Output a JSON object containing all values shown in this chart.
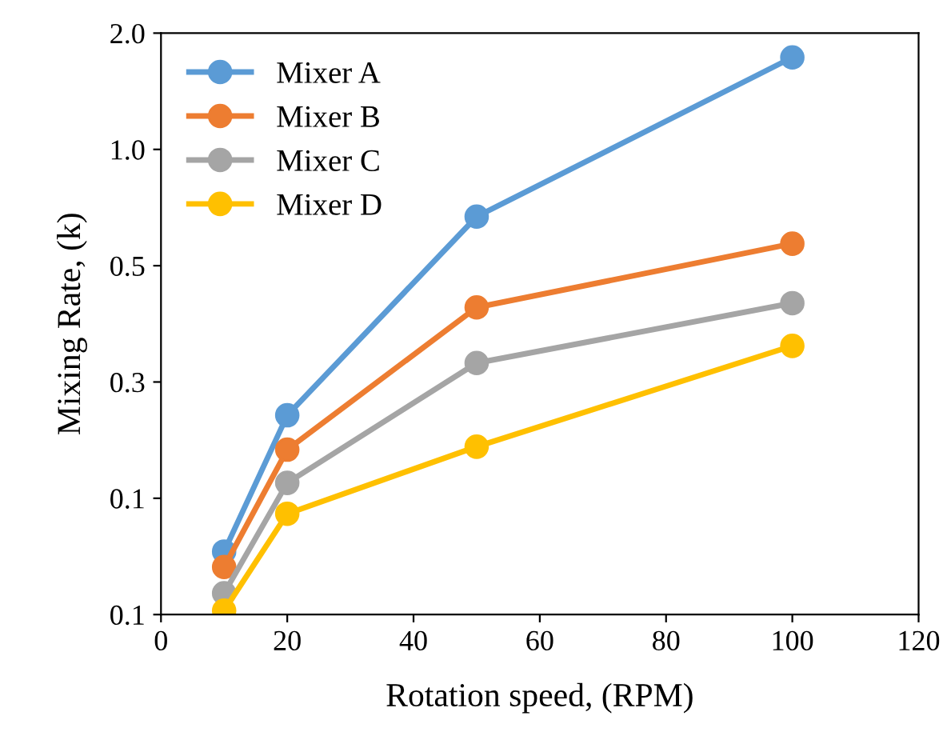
{
  "chart_data": {
    "type": "line",
    "xlabel": "Rotation speed, (RPM)",
    "ylabel": "Mixing Rate, (k)",
    "x": [
      10,
      20,
      50,
      100
    ],
    "series": [
      {
        "name": "Mixer A",
        "color": "#5b9bd5",
        "values": [
          0.091,
          0.205,
          0.67,
          1.73
        ]
      },
      {
        "name": "Mixer B",
        "color": "#ed7d31",
        "values": [
          0.083,
          0.167,
          0.39,
          0.57
        ]
      },
      {
        "name": "Mixer C",
        "color": "#a5a5a5",
        "values": [
          0.071,
          0.137,
          0.28,
          0.4
        ]
      },
      {
        "name": "Mixer D",
        "color": "#ffc000",
        "values": [
          0.064,
          0.114,
          0.17,
          0.31
        ]
      }
    ],
    "log": "y",
    "xlim": [
      0,
      120
    ],
    "xticks": [
      0,
      20,
      40,
      60,
      80,
      100,
      120
    ],
    "ylim": [
      0.0625,
      2.0
    ],
    "yticks": [
      {
        "value": 0.0625,
        "label": "0.1"
      },
      {
        "value": 0.125,
        "label": "0.1"
      },
      {
        "value": 0.25,
        "label": "0.3"
      },
      {
        "value": 0.5,
        "label": "0.5"
      },
      {
        "value": 1.0,
        "label": "1.0"
      },
      {
        "value": 2.0,
        "label": "2.0"
      }
    ],
    "grid": false,
    "legend": "top left",
    "marker": "circle",
    "line_style": "solid"
  }
}
